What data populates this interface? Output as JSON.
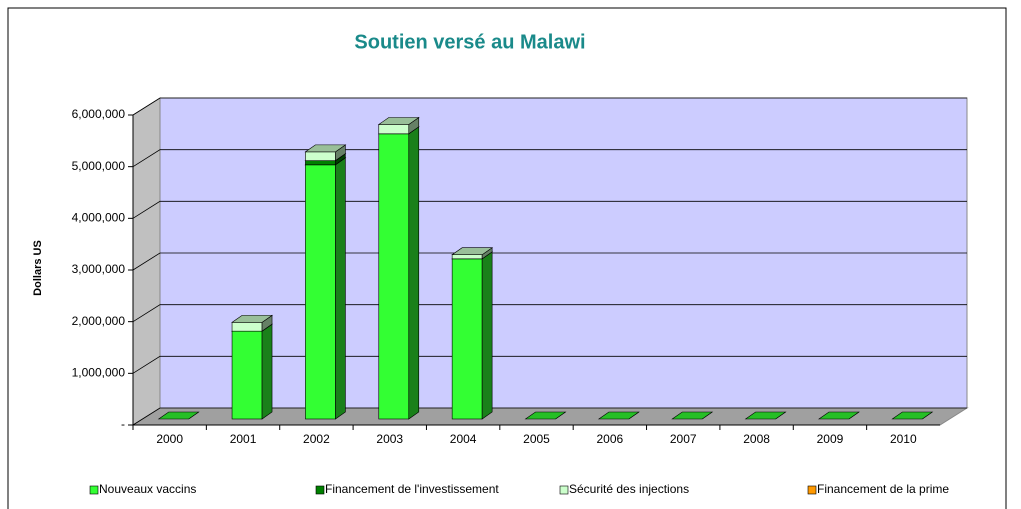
{
  "chart_data": {
    "type": "bar3d_stacked",
    "title": "Soutien versé au Malawi",
    "y_label": "Dollars US",
    "categories": [
      "2000",
      "2001",
      "2002",
      "2003",
      "2004",
      "2005",
      "2006",
      "2007",
      "2008",
      "2009",
      "2010"
    ],
    "series": [
      {
        "name": "Nouveaux vaccins",
        "color": "#33ff33",
        "values": [
          0,
          1700000,
          4920000,
          5520000,
          3100000,
          0,
          0,
          0,
          0,
          0,
          0
        ]
      },
      {
        "name": "Financement de l'investissement",
        "color": "#008000",
        "values": [
          0,
          0,
          80000,
          0,
          0,
          0,
          0,
          0,
          0,
          0,
          0
        ]
      },
      {
        "name": "Sécurité des injections",
        "color": "#ccffcc",
        "values": [
          0,
          170000,
          170000,
          180000,
          80000,
          0,
          0,
          0,
          0,
          0,
          0
        ]
      },
      {
        "name": "Financement de la prime",
        "color": "#ff9900",
        "values": [
          0,
          0,
          0,
          0,
          0,
          0,
          0,
          0,
          0,
          0,
          0
        ]
      }
    ],
    "ylim": [
      0,
      6000000
    ],
    "yticks": [
      {
        "value": 0,
        "label": "-"
      },
      {
        "value": 1000000,
        "label": "1,000,000"
      },
      {
        "value": 2000000,
        "label": "2,000,000"
      },
      {
        "value": 3000000,
        "label": "3,000,000"
      },
      {
        "value": 4000000,
        "label": "4,000,000"
      },
      {
        "value": 5000000,
        "label": "5,000,000"
      },
      {
        "value": 6000000,
        "label": "6,000,000"
      }
    ],
    "grid": true,
    "legend": "bottom"
  }
}
